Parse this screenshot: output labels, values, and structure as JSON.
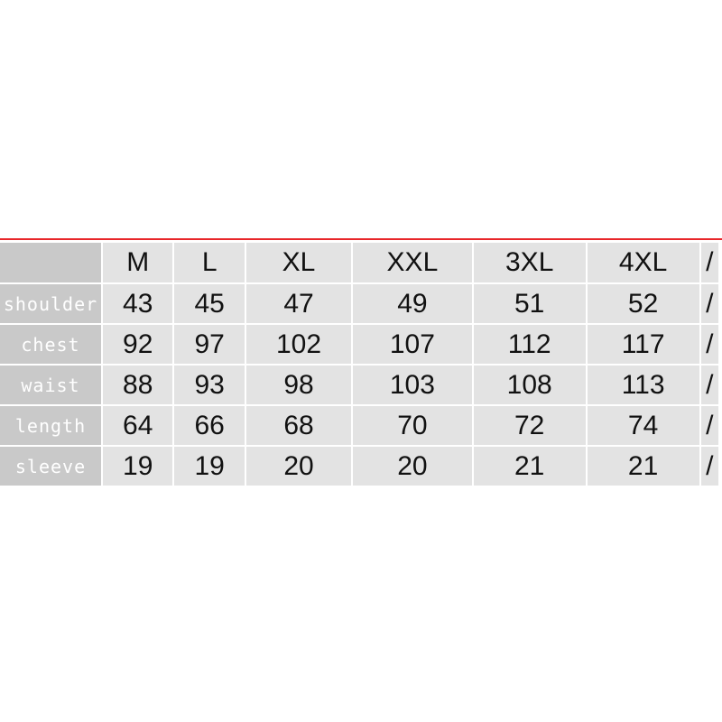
{
  "colors": {
    "rule": "#e8262a",
    "label_bg": "#c9c9c9",
    "cell_bg": "#e3e3e3"
  },
  "header": [
    "M",
    "L",
    "XL",
    "XXL",
    "3XL",
    "4XL",
    "/"
  ],
  "rows": [
    {
      "label": "shoulder",
      "values": [
        "43",
        "45",
        "47",
        "49",
        "51",
        "52",
        "/"
      ]
    },
    {
      "label": "chest",
      "values": [
        "92",
        "97",
        "102",
        "107",
        "112",
        "117",
        "/"
      ]
    },
    {
      "label": "waist",
      "values": [
        "88",
        "93",
        "98",
        "103",
        "108",
        "113",
        "/"
      ]
    },
    {
      "label": "length",
      "values": [
        "64",
        "66",
        "68",
        "70",
        "72",
        "74",
        "/"
      ]
    },
    {
      "label": "sleeve",
      "values": [
        "19",
        "19",
        "20",
        "20",
        "21",
        "21",
        "/"
      ]
    }
  ]
}
